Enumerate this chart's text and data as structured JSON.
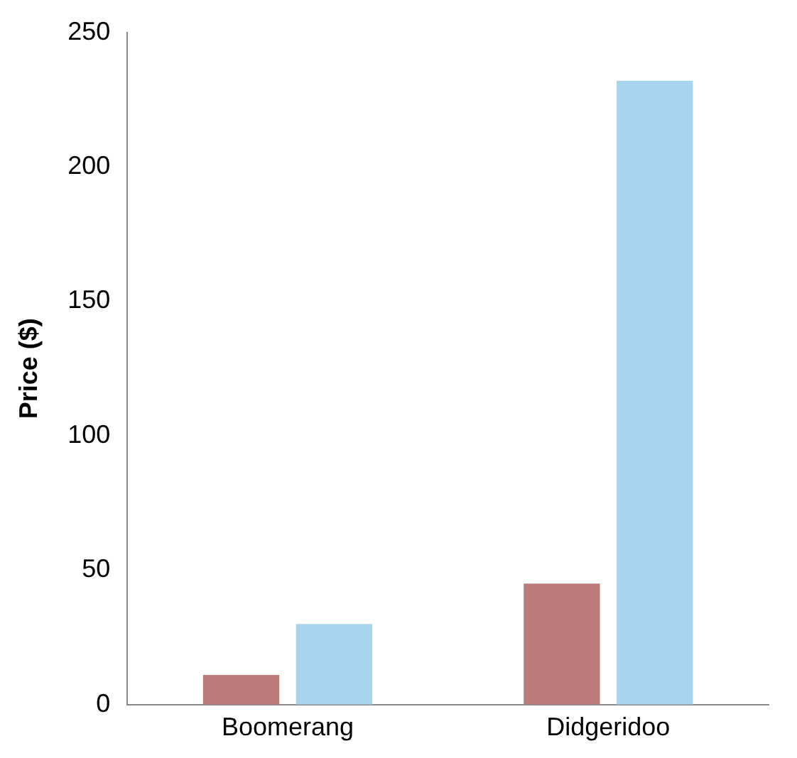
{
  "chart_data": {
    "type": "bar",
    "ylabel": "Price ($)",
    "categories": [
      "Boomerang",
      "Didgeridoo"
    ],
    "series": [
      {
        "color": "#bb7b79",
        "values": [
          11,
          45
        ]
      },
      {
        "color": "#a8d4ef",
        "values": [
          30,
          232
        ]
      }
    ],
    "ylim": [
      0,
      250
    ],
    "yticks": [
      0,
      50,
      100,
      150,
      200,
      250
    ],
    "grid": false,
    "legend": false
  }
}
